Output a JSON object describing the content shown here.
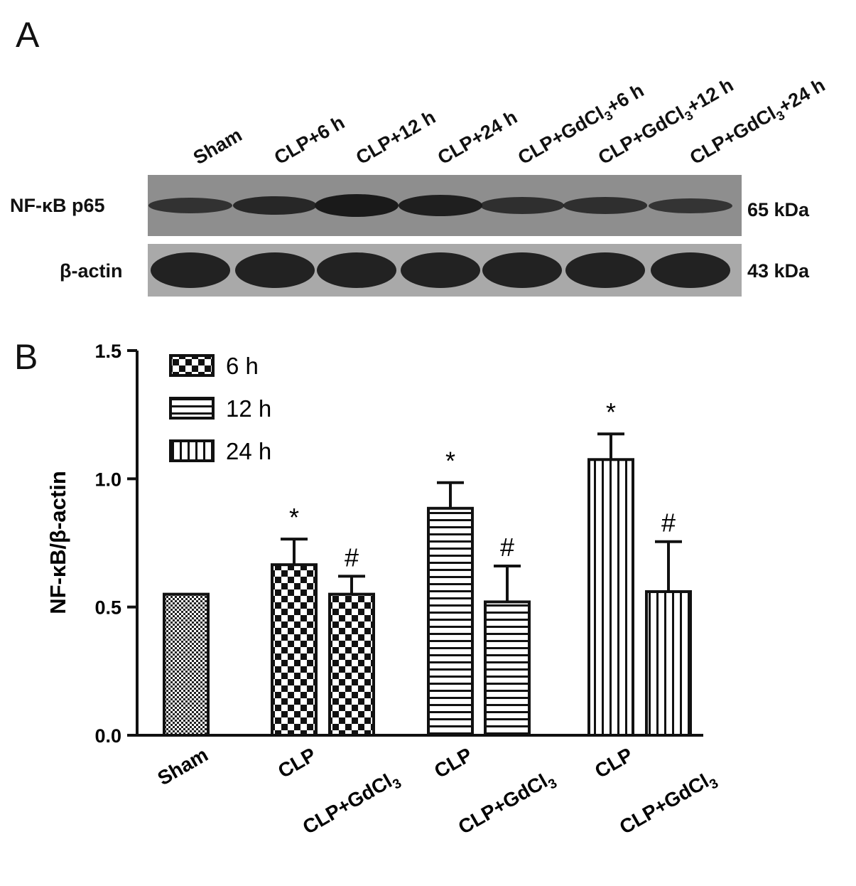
{
  "panel_a": {
    "letter": "A",
    "lanes": [
      {
        "main": "Sham",
        "sub": "",
        "tail": ""
      },
      {
        "main": "CLP+6 h",
        "sub": "",
        "tail": ""
      },
      {
        "main": "CLP+12 h",
        "sub": "",
        "tail": ""
      },
      {
        "main": "CLP+24 h",
        "sub": "",
        "tail": ""
      },
      {
        "main": "CLP+GdCl",
        "sub": "3",
        "tail": "+6 h"
      },
      {
        "main": "CLP+GdCl",
        "sub": "3",
        "tail": "+12 h"
      },
      {
        "main": "CLP+GdCl",
        "sub": "3",
        "tail": "+24 h"
      }
    ],
    "rows": [
      {
        "label": "NF-κB p65",
        "size": "65 kDa",
        "band_intensity": [
          0.55,
          0.75,
          1.0,
          0.9,
          0.6,
          0.6,
          0.5
        ]
      },
      {
        "label": "β-actin",
        "size": "43 kDa",
        "band_intensity": [
          1,
          1,
          1,
          1,
          1,
          1,
          1
        ]
      }
    ],
    "colors": {
      "blot1_bg": "#8e8e8e",
      "blot2_bg": "#a9a9a9",
      "band": "#1a1a1a"
    }
  },
  "panel_b": {
    "letter": "B"
  },
  "chart_data": {
    "type": "bar",
    "title": "",
    "xlabel": "",
    "ylabel": "NF-κB/β-actin",
    "ylim": [
      0,
      1.5
    ],
    "yticks": [
      "0.0",
      "0.5",
      "1.0",
      "1.5"
    ],
    "grid": false,
    "legend_position": "top-left",
    "legend": [
      {
        "label": "6 h",
        "pattern": "checker"
      },
      {
        "label": "12 h",
        "pattern": "horizontal"
      },
      {
        "label": "24 h",
        "pattern": "vertical"
      }
    ],
    "categories": [
      {
        "label": "Sham",
        "sub": "",
        "row": 0
      },
      {
        "label": "CLP",
        "sub": "",
        "row": 0
      },
      {
        "label": "CLP+GdCl",
        "sub": "3",
        "row": 1
      },
      {
        "label": "CLP",
        "sub": "",
        "row": 0
      },
      {
        "label": "CLP+GdCl",
        "sub": "3",
        "row": 1
      },
      {
        "label": "CLP",
        "sub": "",
        "row": 0
      },
      {
        "label": "CLP+GdCl",
        "sub": "3",
        "row": 1
      }
    ],
    "values": [
      0.55,
      0.665,
      0.55,
      0.885,
      0.52,
      1.075,
      0.56
    ],
    "errors": [
      0,
      0.1,
      0.07,
      0.1,
      0.14,
      0.1,
      0.195
    ],
    "patterns": [
      "fine",
      "checker",
      "checker",
      "horizontal",
      "horizontal",
      "vertical",
      "vertical"
    ],
    "annotations": [
      "",
      "*",
      "#",
      "*",
      "#",
      "*",
      "#"
    ]
  }
}
